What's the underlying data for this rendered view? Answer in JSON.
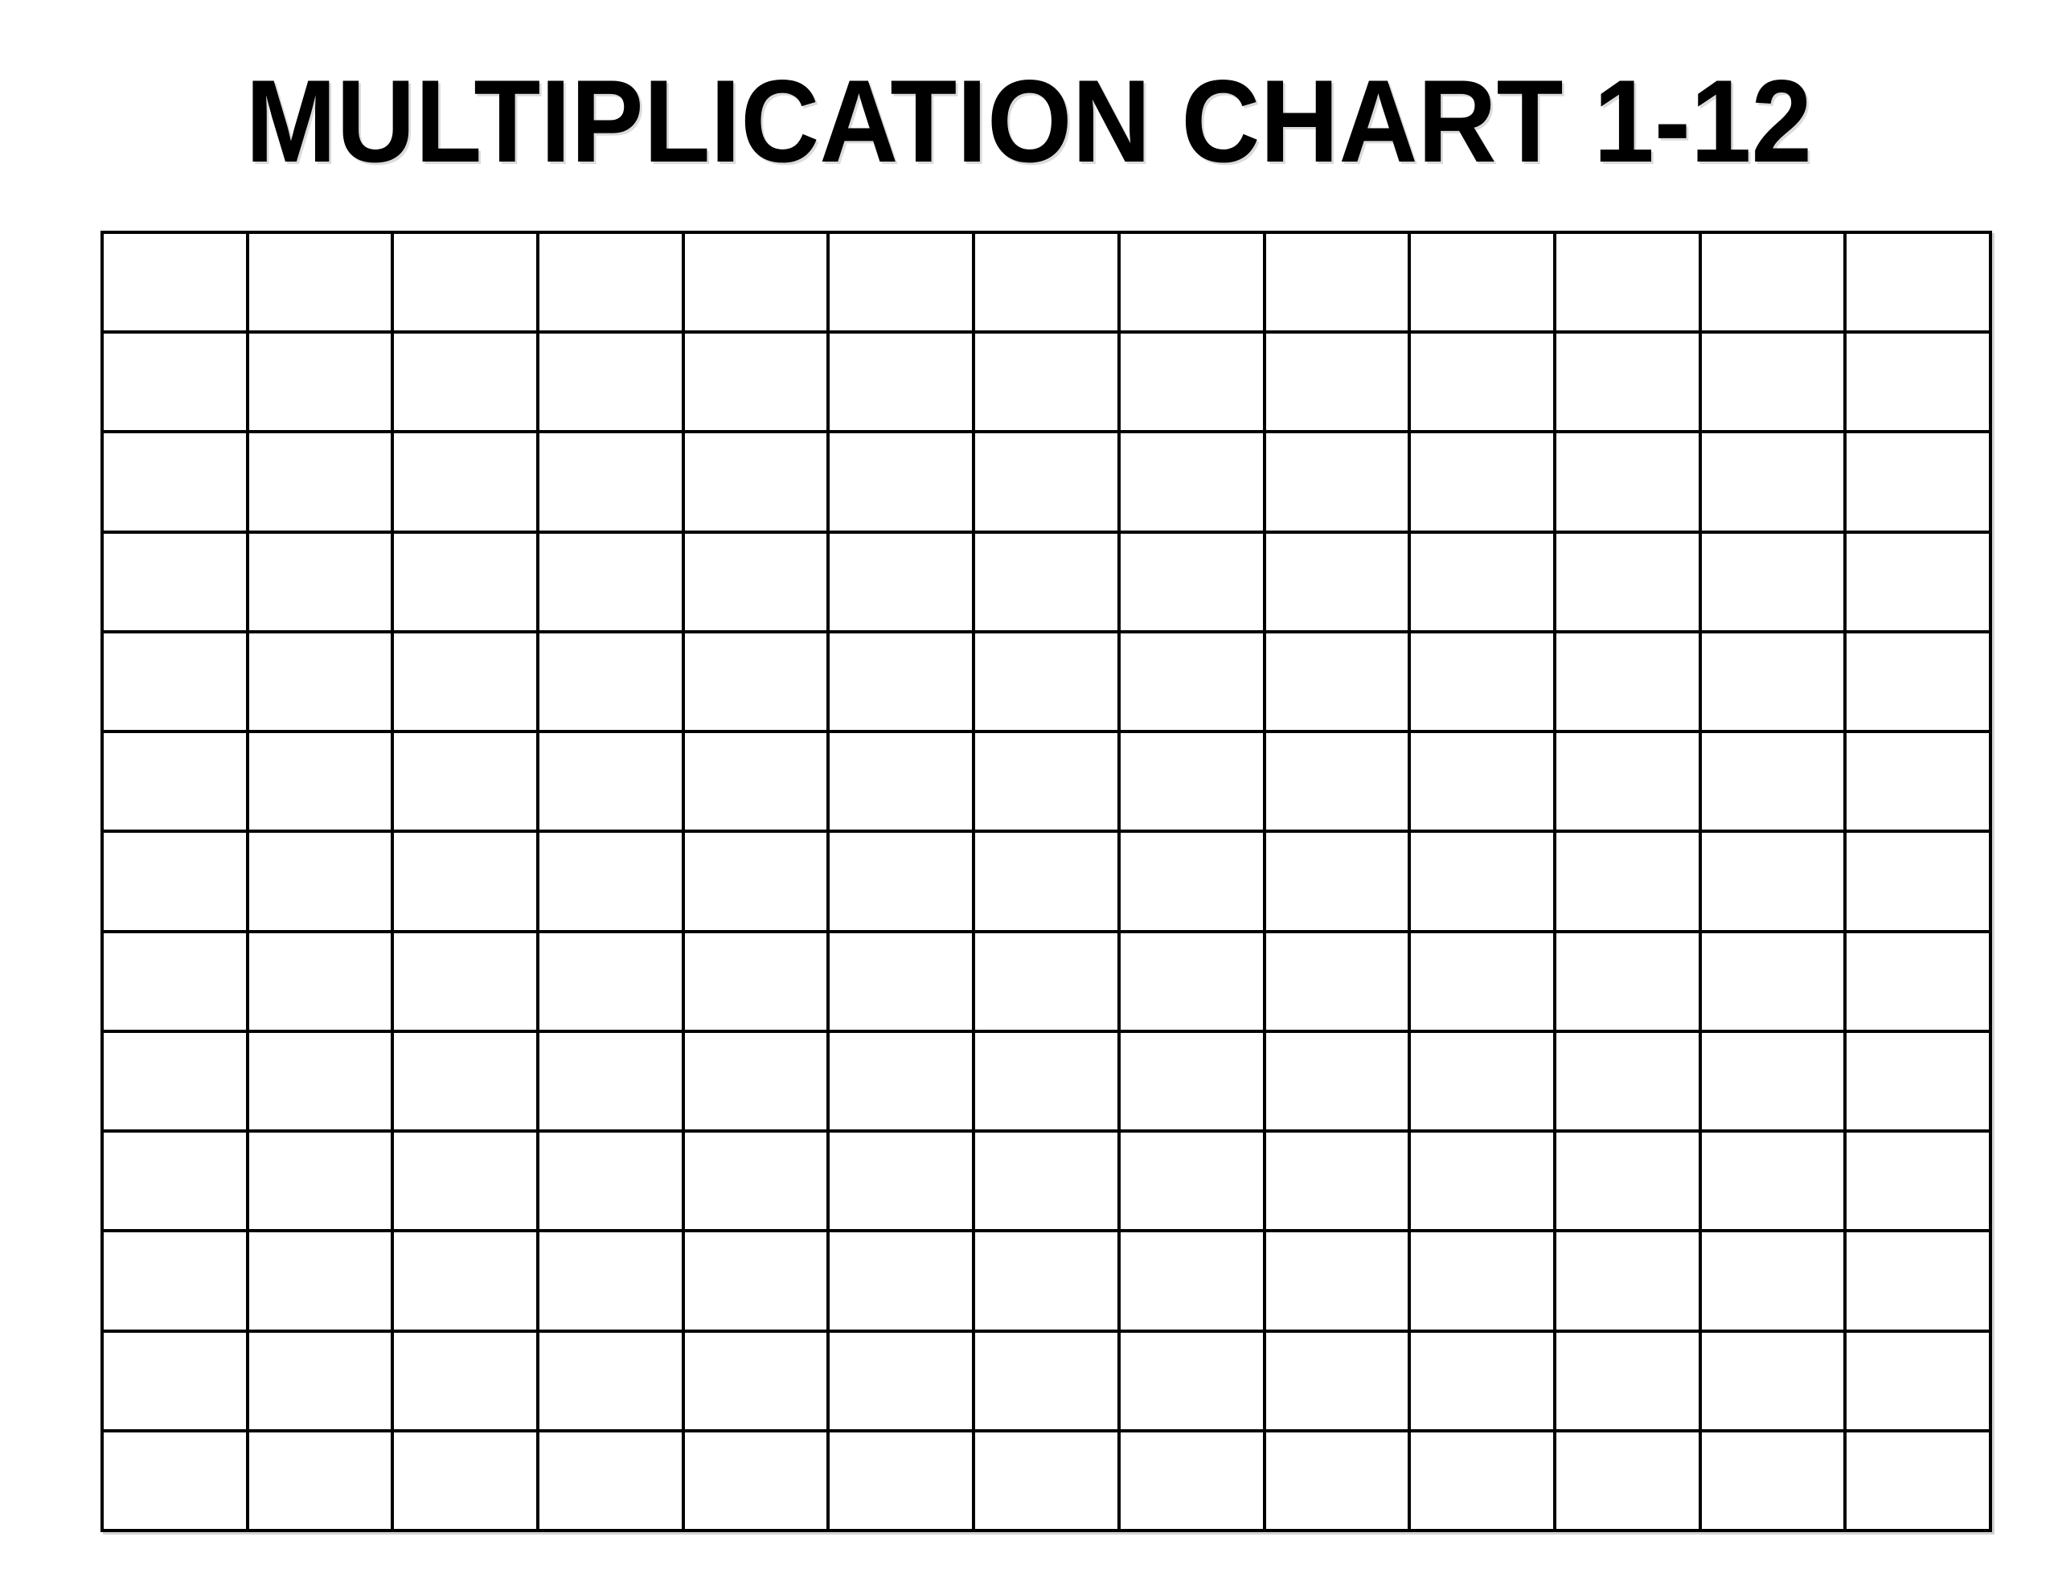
{
  "page": {
    "background_color": "#ffffff"
  },
  "title": {
    "text": "MULTIPLICATION CHART 1-12",
    "color": "#000000"
  },
  "grid": {
    "rows": 13,
    "columns": 13,
    "line_color": "#000000",
    "cell_background": "#ffffff",
    "cells_state": "all cells empty (blank fill-in worksheet)"
  }
}
